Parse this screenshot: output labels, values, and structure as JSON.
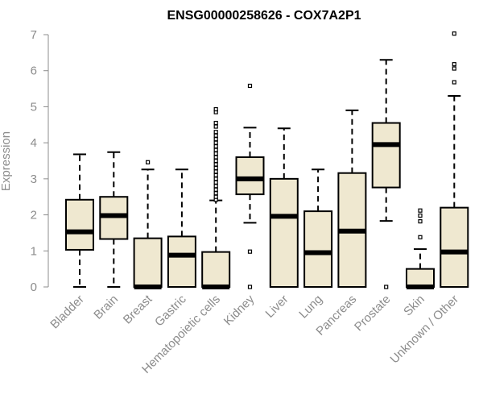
{
  "chart_data": {
    "type": "boxplot",
    "title": "ENSG00000258626 - COX7A2P1",
    "xlabel": "",
    "ylabel": "Expression",
    "ylim": [
      0,
      7
    ],
    "yticks": [
      0,
      1,
      2,
      3,
      4,
      5,
      6,
      7
    ],
    "grid": false,
    "legend": "none",
    "colors": {
      "box_fill": "#efe8d0",
      "stroke": "#000000",
      "axis_text": "#8c8c8c"
    },
    "categories": [
      "Bladder",
      "Brain",
      "Breast",
      "Gastric",
      "Hematopoietic cells",
      "Kidney",
      "Liver",
      "Lung",
      "Pancreas",
      "Prostate",
      "Skin",
      "Unknown / Other"
    ],
    "boxes": [
      {
        "category": "Bladder",
        "min": 0,
        "q1": 1.03,
        "median": 1.53,
        "q3": 2.42,
        "max": 3.68,
        "outliers": []
      },
      {
        "category": "Brain",
        "min": 0,
        "q1": 1.33,
        "median": 1.98,
        "q3": 2.5,
        "max": 3.74,
        "outliers": []
      },
      {
        "category": "Breast",
        "min": 0,
        "q1": 0,
        "median": 0,
        "q3": 1.35,
        "max": 3.26,
        "outliers": [
          3.46
        ]
      },
      {
        "category": "Gastric",
        "min": 0,
        "q1": 0,
        "median": 0.88,
        "q3": 1.4,
        "max": 3.26,
        "outliers": []
      },
      {
        "category": "Hematopoietic cells",
        "min": 0,
        "q1": 0,
        "median": 0,
        "q3": 0.97,
        "max": 2.4,
        "outliers": [
          2.42,
          2.5,
          2.6,
          2.7,
          2.8,
          2.9,
          3.0,
          3.1,
          3.2,
          3.3,
          3.4,
          3.5,
          3.6,
          3.7,
          3.8,
          3.9,
          4.0,
          4.1,
          4.2,
          4.3,
          4.45,
          4.55,
          4.85,
          4.93
        ]
      },
      {
        "category": "Kidney",
        "min": 1.78,
        "q1": 2.57,
        "median": 3.0,
        "q3": 3.6,
        "max": 4.42,
        "outliers": [
          0,
          0.98,
          5.58
        ]
      },
      {
        "category": "Liver",
        "min": 0,
        "q1": 0,
        "median": 1.96,
        "q3": 3.0,
        "max": 4.4,
        "outliers": []
      },
      {
        "category": "Lung",
        "min": 0,
        "q1": 0,
        "median": 0.95,
        "q3": 2.1,
        "max": 3.26,
        "outliers": []
      },
      {
        "category": "Pancreas",
        "min": 0,
        "q1": 0,
        "median": 1.55,
        "q3": 3.16,
        "max": 4.9,
        "outliers": []
      },
      {
        "category": "Prostate",
        "min": 1.83,
        "q1": 2.76,
        "median": 3.95,
        "q3": 4.55,
        "max": 6.3,
        "outliers": [
          0
        ]
      },
      {
        "category": "Skin",
        "min": 0,
        "q1": 0,
        "median": 0,
        "q3": 0.5,
        "max": 1.05,
        "outliers": [
          1.38,
          1.82,
          1.98,
          2.12
        ]
      },
      {
        "category": "Unknown / Other",
        "min": 0,
        "q1": 0,
        "median": 0.97,
        "q3": 2.2,
        "max": 5.3,
        "outliers": [
          5.68,
          6.06,
          6.18,
          7.03
        ]
      }
    ]
  }
}
